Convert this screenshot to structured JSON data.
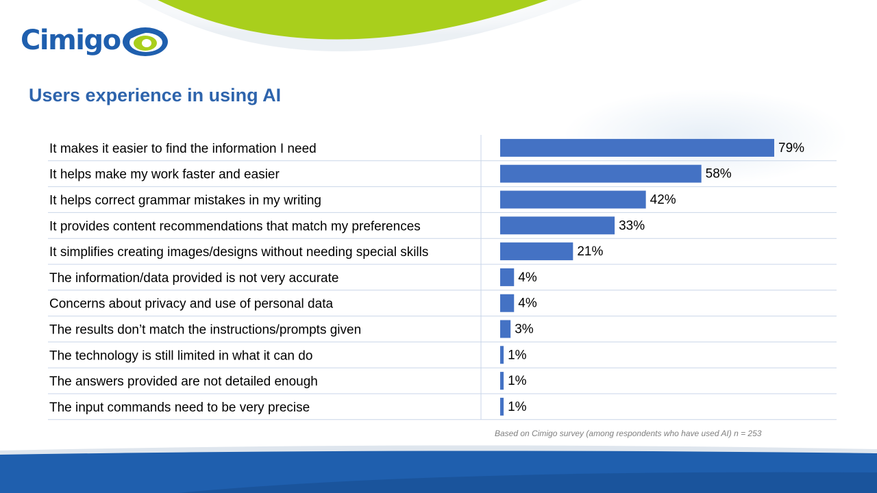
{
  "brand": {
    "name": "Cimigo"
  },
  "colors": {
    "bar": "#4472c4",
    "title": "#2e64ac",
    "brand_blue": "#1f5fae",
    "brand_green": "#a9cf1c",
    "grid": "#c9d6e8"
  },
  "title": "Users experience in using AI",
  "footnote": "Based on Cimigo survey (among respondents who have used AI) n = 253",
  "chart_data": {
    "type": "bar",
    "orientation": "horizontal",
    "categories": [
      "It makes it easier to find the information I need",
      "It helps make my work faster and easier",
      "It helps correct grammar mistakes in my writing",
      "It provides content recommendations that match my preferences",
      "It simplifies creating images/designs without needing special skills",
      "The information/data provided is not very accurate",
      "Concerns about privacy and use of personal data",
      "The results don’t match the instructions/prompts given",
      "The technology is still limited in what it can do",
      "The answers provided are not detailed enough",
      "The input commands need to be very precise"
    ],
    "values": [
      79,
      58,
      42,
      33,
      21,
      4,
      4,
      3,
      1,
      1,
      1
    ],
    "value_labels": [
      "79%",
      "58%",
      "42%",
      "33%",
      "21%",
      "4%",
      "4%",
      "3%",
      "1%",
      "1%",
      "1%"
    ],
    "unit": "%",
    "xlim": [
      0,
      100
    ],
    "grid": false,
    "legend": "none"
  }
}
